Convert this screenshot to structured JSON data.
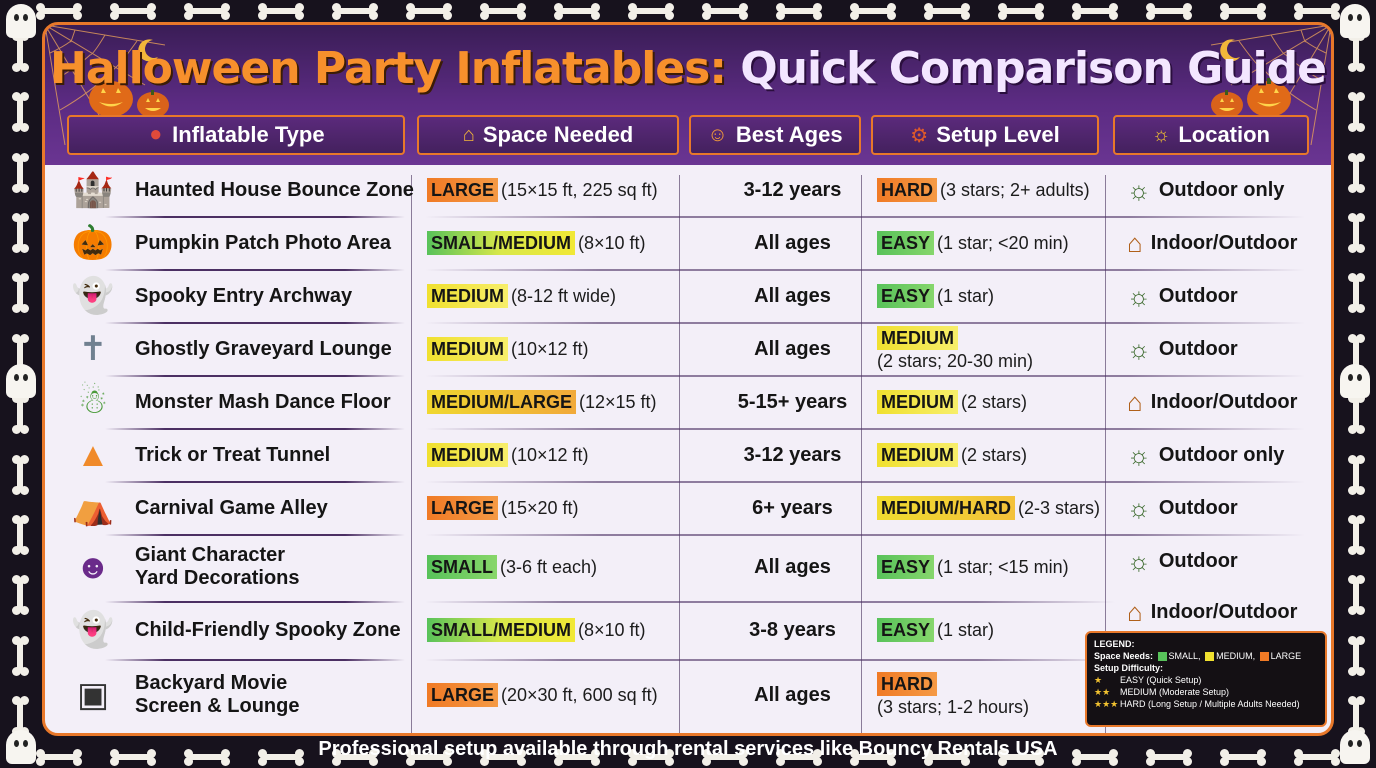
{
  "title": {
    "part1": "Halloween Party Inflatables:",
    "part2": "Quick Comparison Guide"
  },
  "columns": [
    {
      "label": "Inflatable Type",
      "icon": "pump-icon"
    },
    {
      "label": "Space Needed",
      "icon": "ruler-house-icon"
    },
    {
      "label": "Best Ages",
      "icon": "family-icon"
    },
    {
      "label": "Setup Level",
      "icon": "toolbox-icon"
    },
    {
      "label": "Location",
      "icon": "house-sun-icon"
    }
  ],
  "rows": [
    {
      "type": "Haunted House Bounce Zone",
      "icon": "haunted-house-icon",
      "space_tag": "LARGE",
      "space_detail": "(15×15 ft, 225 sq ft)",
      "age": "3-12 years",
      "setup_tag": "HARD",
      "setup_detail": "(3 stars; 2+ adults)",
      "location": "Outdoor only",
      "loc_icon": "outdoor-icon"
    },
    {
      "type": "Pumpkin Patch Photo Area",
      "icon": "pumpkin-photo-icon",
      "space_tag": "SMALL/MEDIUM",
      "space_detail": "(8×10 ft)",
      "age": "All ages",
      "setup_tag": "EASY",
      "setup_detail": "(1 star; <20 min)",
      "location": "Indoor/Outdoor",
      "loc_icon": "indoor-outdoor-icon"
    },
    {
      "type": "Spooky Entry Archway",
      "icon": "ghost-arch-icon",
      "space_tag": "MEDIUM",
      "space_detail": "(8-12 ft wide)",
      "age": "All ages",
      "setup_tag": "EASY",
      "setup_detail": "(1 star)",
      "location": "Outdoor",
      "loc_icon": "outdoor-icon"
    },
    {
      "type": "Ghostly Graveyard Lounge",
      "icon": "graveyard-icon",
      "space_tag": "MEDIUM",
      "space_detail": "(10×12 ft)",
      "age": "All ages",
      "setup_tag": "MEDIUM",
      "setup_detail": "(2 stars; 20-30 min)",
      "location": "Outdoor",
      "loc_icon": "outdoor-icon"
    },
    {
      "type": "Monster Mash Dance Floor",
      "icon": "monster-icon",
      "space_tag": "MEDIUM/LARGE",
      "space_detail": "(12×15 ft)",
      "age": "5-15+ years",
      "setup_tag": "MEDIUM",
      "setup_detail": "(2 stars)",
      "location": "Indoor/Outdoor",
      "loc_icon": "indoor-outdoor-icon"
    },
    {
      "type": "Trick or Treat Tunnel",
      "icon": "candy-tunnel-icon",
      "space_tag": "MEDIUM",
      "space_detail": "(10×12 ft)",
      "age": "3-12 years",
      "setup_tag": "MEDIUM",
      "setup_detail": "(2 stars)",
      "location": "Outdoor only",
      "loc_icon": "outdoor-icon"
    },
    {
      "type": "Carnival Game Alley",
      "icon": "carnival-icon",
      "space_tag": "LARGE",
      "space_detail": "(15×20 ft)",
      "age": "6+ years",
      "setup_tag": "MEDIUM/HARD",
      "setup_detail": "(2-3 stars)",
      "location": "Outdoor",
      "loc_icon": "outdoor-icon"
    },
    {
      "type": "Giant Character\nYard Decorations",
      "type_line1": "Giant Character",
      "type_line2": "Yard Decorations",
      "icon": "characters-icon",
      "space_tag": "SMALL",
      "space_detail": "(3-6 ft each)",
      "age": "All ages",
      "setup_tag": "EASY",
      "setup_detail": "(1 star; <15 min)",
      "location": "Outdoor",
      "loc_icon": "outdoor-icon"
    },
    {
      "type": "Child-Friendly Spooky Zone",
      "icon": "friendly-ghosts-icon",
      "space_tag": "SMALL/MEDIUM",
      "space_detail": "(8×10 ft)",
      "age": "3-8 years",
      "setup_tag": "EASY",
      "setup_detail": "(1 star)",
      "location": "Indoor/Outdoor",
      "loc_icon": "indoor-outdoor-icon"
    },
    {
      "type_line1": "Backyard Movie",
      "type_line2": "Screen & Lounge",
      "icon": "movie-screen-icon",
      "space_tag": "LARGE",
      "space_detail": "(20×30 ft, 600 sq ft)",
      "age": "All ages",
      "setup_tag": "HARD",
      "setup_detail": "(3 stars; 1-2 hours)"
    }
  ],
  "legend": {
    "title": "LEGEND:",
    "space_label": "Space Needs:",
    "space_small": "SMALL,",
    "space_medium": "MEDIUM,",
    "space_large": "LARGE",
    "setup_label": "Setup Difficulty:",
    "easy": "EASY (Quick Setup)",
    "medium": "MEDIUM (Moderate Setup)",
    "hard": "HARD (Long Setup / Multiple Adults Needed)",
    "stars1": "★",
    "stars2": "★★",
    "stars3": "★★★"
  },
  "colors": {
    "large": "#f07a25",
    "medium": "#f0e02f",
    "small": "#58c25a",
    "accent": "#e8782a",
    "header": "#5b2b82"
  },
  "footer": "Professional setup available through rental services like Bouncy Rentals USA"
}
